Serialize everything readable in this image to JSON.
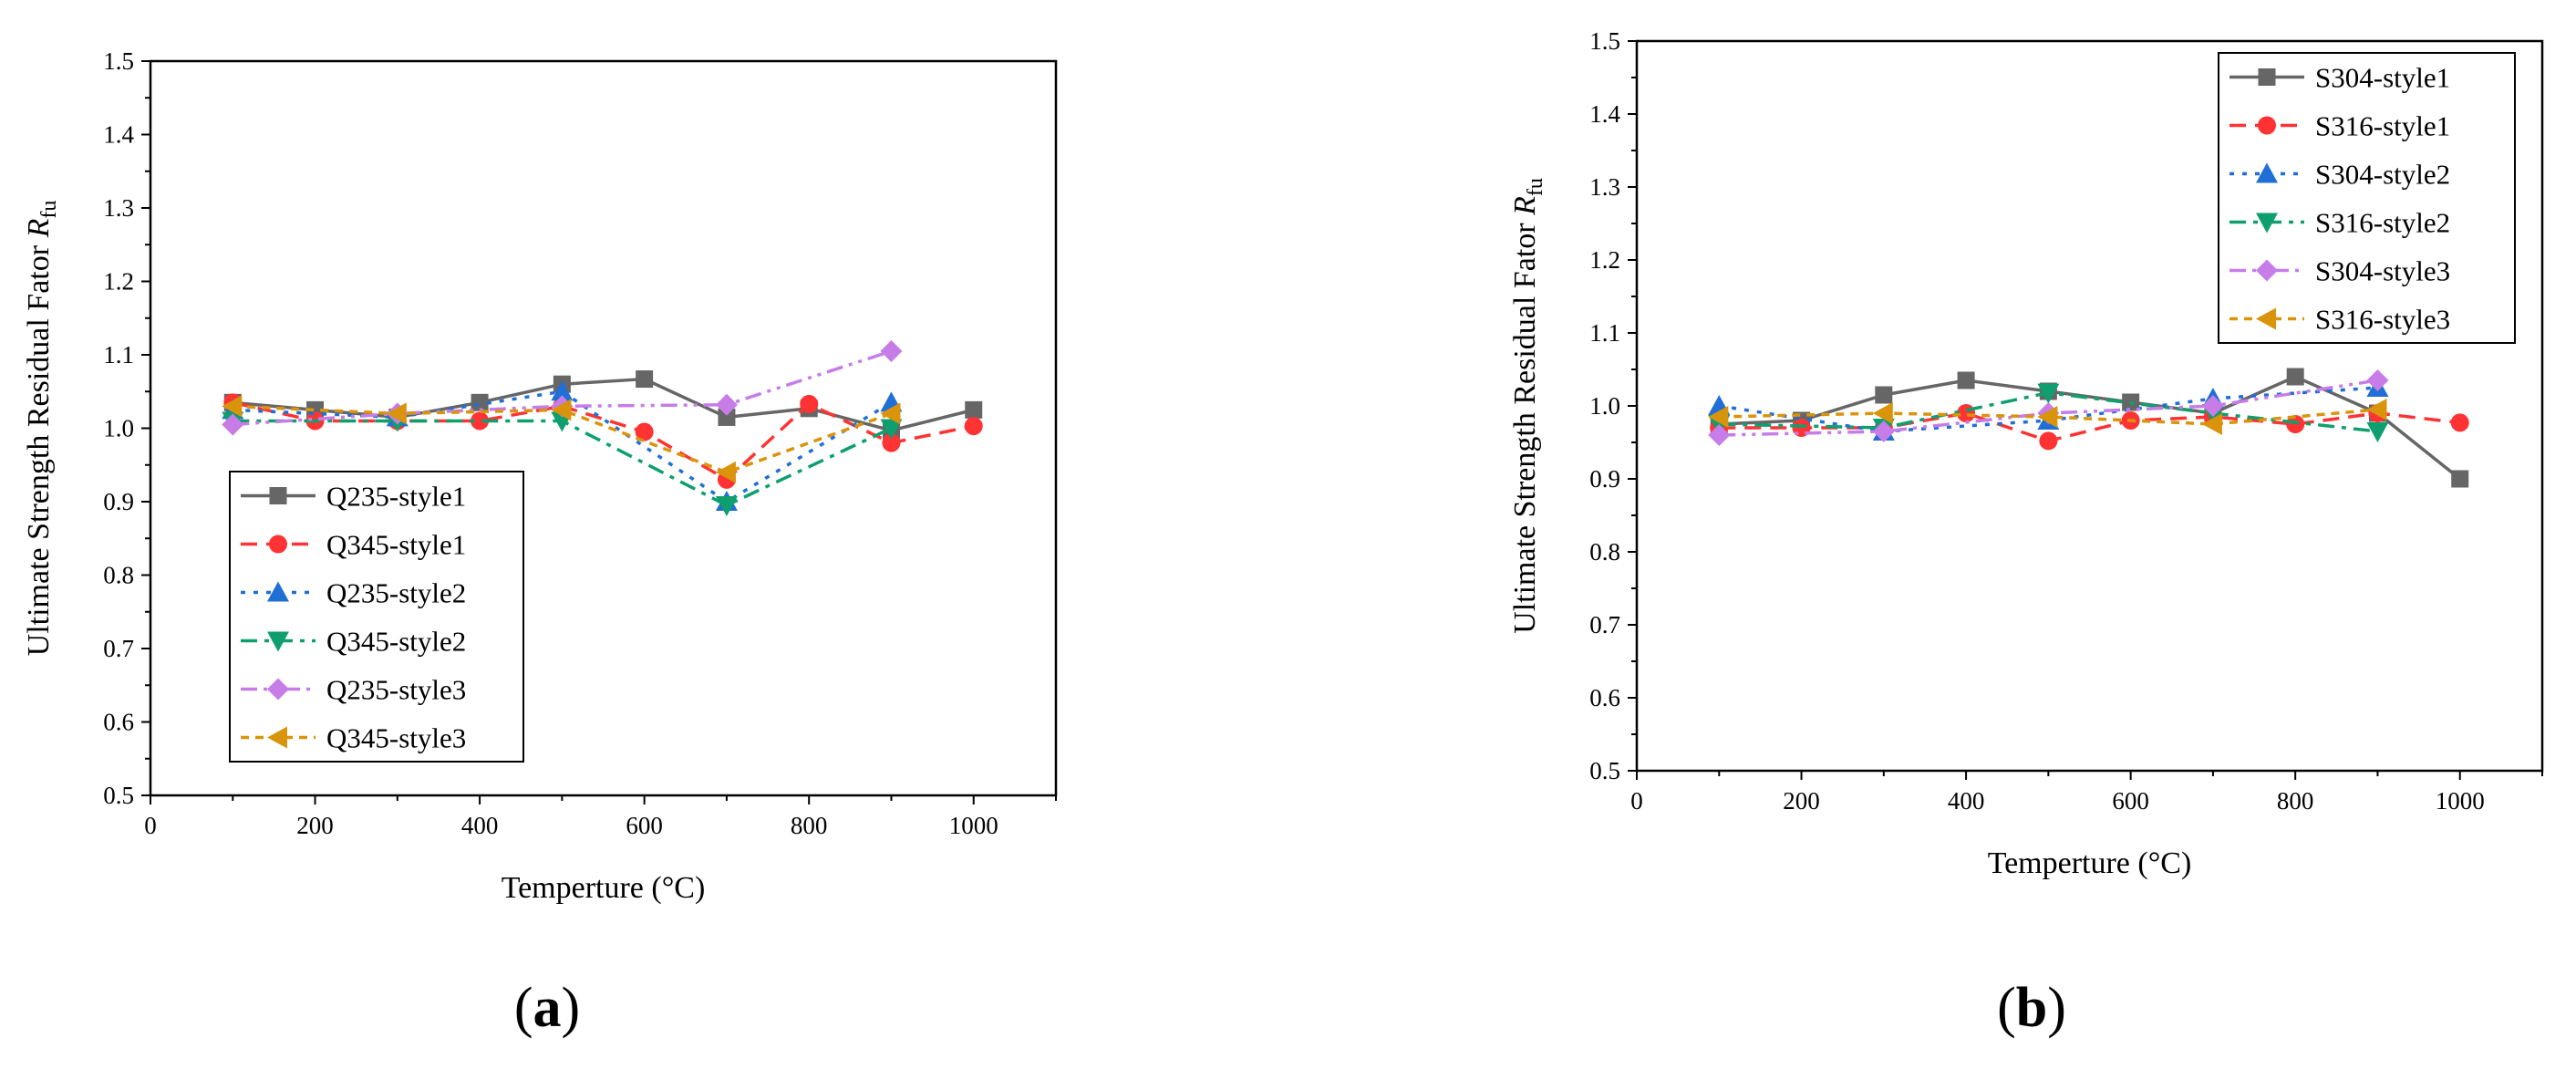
{
  "chart_data": [
    {
      "type": "line",
      "panel_label": {
        "open": "(",
        "letter": "a",
        "close": ")"
      },
      "title": "",
      "xlabel": "Temperture (°C)",
      "ylabel": {
        "text": "Ultimate Strength Residual Fator ",
        "symbol": "R",
        "subscript": "fu"
      },
      "xlim": [
        0,
        1100
      ],
      "ylim": [
        0.5,
        1.5
      ],
      "x_ticks": [
        0,
        200,
        400,
        600,
        800,
        1000
      ],
      "y_ticks": [
        0.5,
        0.6,
        0.7,
        0.8,
        0.9,
        1.0,
        1.1,
        1.2,
        1.3,
        1.4,
        1.5
      ],
      "legend_position": "lower-left",
      "series": [
        {
          "name": "Q235-style1",
          "color": "#666666",
          "marker": "square",
          "dash": "solid",
          "x": [
            100,
            200,
            300,
            400,
            500,
            600,
            700,
            800,
            900,
            1000
          ],
          "y": [
            1.035,
            1.025,
            1.015,
            1.035,
            1.06,
            1.067,
            1.015,
            1.027,
            0.997,
            1.025
          ]
        },
        {
          "name": "Q345-style1",
          "color": "#ff3333",
          "marker": "circle",
          "dash": "dash",
          "x": [
            100,
            200,
            300,
            400,
            500,
            600,
            700,
            800,
            900,
            1000
          ],
          "y": [
            1.035,
            1.01,
            1.01,
            1.01,
            1.03,
            0.995,
            0.93,
            1.033,
            0.98,
            1.003
          ]
        },
        {
          "name": "Q235-style2",
          "color": "#1f6fd6",
          "marker": "triangle-up",
          "dash": "dot",
          "x": [
            100,
            300,
            500,
            700,
            900
          ],
          "y": [
            1.025,
            1.015,
            1.05,
            0.9,
            1.035
          ]
        },
        {
          "name": "Q345-style2",
          "color": "#0f9f6e",
          "marker": "triangle-down",
          "dash": "dashdot",
          "x": [
            100,
            300,
            500,
            700,
            900
          ],
          "y": [
            1.01,
            1.01,
            1.01,
            0.895,
            1.0
          ]
        },
        {
          "name": "Q235-style3",
          "color": "#c77ce8",
          "marker": "diamond",
          "dash": "dashdotdot",
          "x": [
            100,
            300,
            500,
            700,
            900
          ],
          "y": [
            1.005,
            1.02,
            1.03,
            1.032,
            1.105
          ]
        },
        {
          "name": "Q345-style3",
          "color": "#d9940b",
          "marker": "triangle-left",
          "dash": "shortdash",
          "x": [
            100,
            300,
            500,
            700,
            900
          ],
          "y": [
            1.03,
            1.02,
            1.025,
            0.94,
            1.02
          ]
        }
      ]
    },
    {
      "type": "line",
      "panel_label": {
        "open": "(",
        "letter": "b",
        "close": ")"
      },
      "title": "",
      "xlabel": "Temperture (°C)",
      "ylabel": {
        "text": "Ultimate Strength Residual Fator ",
        "symbol": "R",
        "subscript": "fu"
      },
      "xlim": [
        0,
        1100
      ],
      "ylim": [
        0.5,
        1.5
      ],
      "x_ticks": [
        0,
        200,
        400,
        600,
        800,
        1000
      ],
      "y_ticks": [
        0.5,
        0.6,
        0.7,
        0.8,
        0.9,
        1.0,
        1.1,
        1.2,
        1.3,
        1.4,
        1.5
      ],
      "legend_position": "top-right",
      "series": [
        {
          "name": "S304-style1",
          "color": "#666666",
          "marker": "square",
          "dash": "solid",
          "x": [
            100,
            200,
            300,
            400,
            500,
            600,
            700,
            800,
            900,
            1000
          ],
          "y": [
            0.975,
            0.98,
            1.015,
            1.035,
            1.02,
            1.005,
            0.99,
            1.04,
            0.99,
            0.9
          ]
        },
        {
          "name": "S316-style1",
          "color": "#ff3333",
          "marker": "circle",
          "dash": "dash",
          "x": [
            100,
            200,
            300,
            400,
            500,
            600,
            700,
            800,
            900,
            1000
          ],
          "y": [
            0.97,
            0.97,
            0.97,
            0.99,
            0.952,
            0.98,
            0.985,
            0.975,
            0.99,
            0.977
          ]
        },
        {
          "name": "S304-style2",
          "color": "#1f6fd6",
          "marker": "triangle-up",
          "dash": "dot",
          "x": [
            100,
            300,
            500,
            700,
            900
          ],
          "y": [
            1.0,
            0.965,
            0.98,
            1.01,
            1.025
          ]
        },
        {
          "name": "S316-style2",
          "color": "#0f9f6e",
          "marker": "triangle-down",
          "dash": "dashdot",
          "x": [
            100,
            300,
            500,
            700,
            900
          ],
          "y": [
            0.975,
            0.97,
            1.018,
            0.99,
            0.965
          ]
        },
        {
          "name": "S304-style3",
          "color": "#c77ce8",
          "marker": "diamond",
          "dash": "dashdotdot",
          "x": [
            100,
            300,
            500,
            700,
            900
          ],
          "y": [
            0.96,
            0.965,
            0.99,
            1.0,
            1.035
          ]
        },
        {
          "name": "S316-style3",
          "color": "#d9940b",
          "marker": "triangle-left",
          "dash": "shortdash",
          "x": [
            100,
            300,
            500,
            700,
            900
          ],
          "y": [
            0.985,
            0.99,
            0.985,
            0.975,
            0.995
          ]
        }
      ]
    }
  ]
}
